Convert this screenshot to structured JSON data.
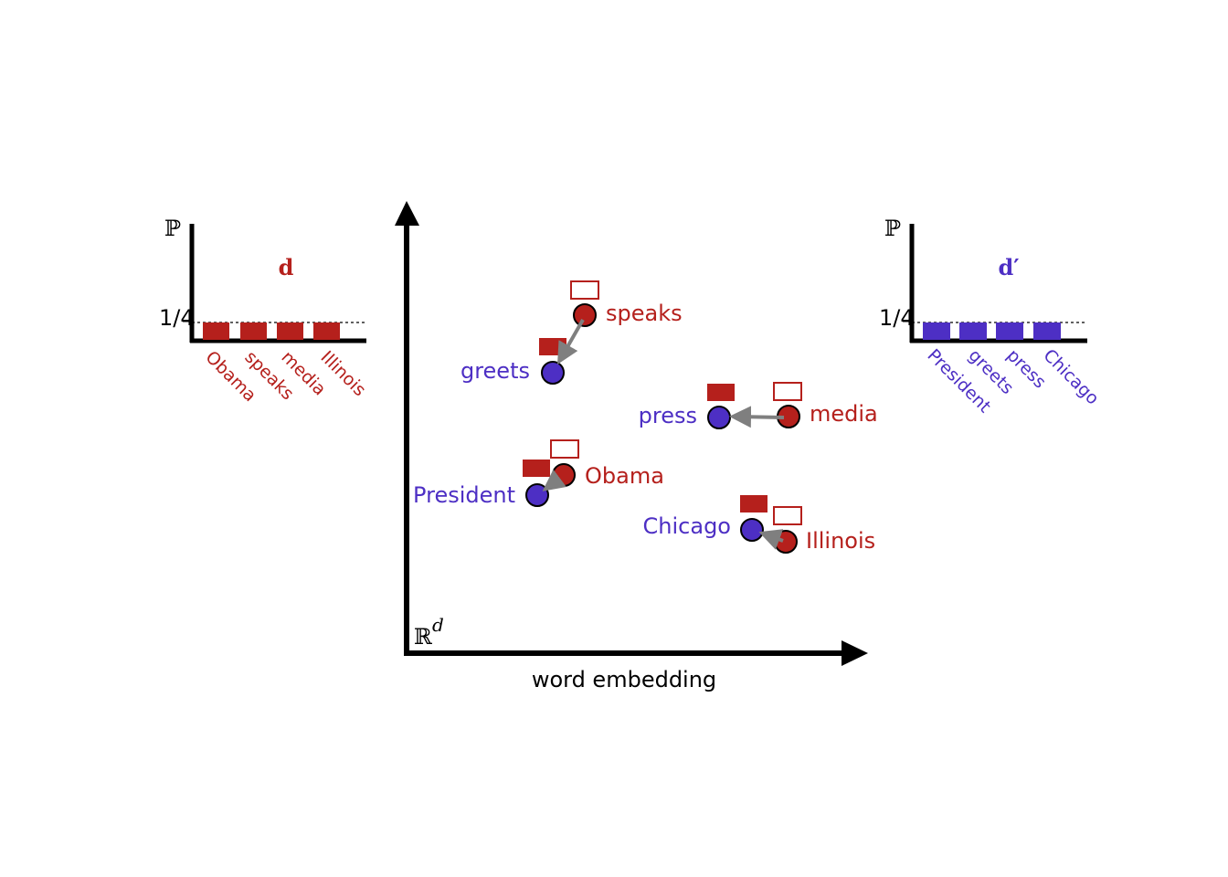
{
  "left_histogram": {
    "axis_label": "ℙ",
    "title": "d",
    "tick": "1/4",
    "words": [
      "Obama",
      "speaks",
      "media",
      "Illinois"
    ]
  },
  "right_histogram": {
    "axis_label": "ℙ",
    "title": "d′",
    "tick": "1/4",
    "words": [
      "President",
      "greets",
      "press",
      "Chicago"
    ]
  },
  "embedding": {
    "space_label": "ℝ",
    "space_superscript": "d",
    "x_label": "word embedding",
    "source_words": [
      "speaks",
      "media",
      "Obama",
      "Illinois"
    ],
    "target_words": [
      "greets",
      "press",
      "President",
      "Chicago"
    ]
  }
}
